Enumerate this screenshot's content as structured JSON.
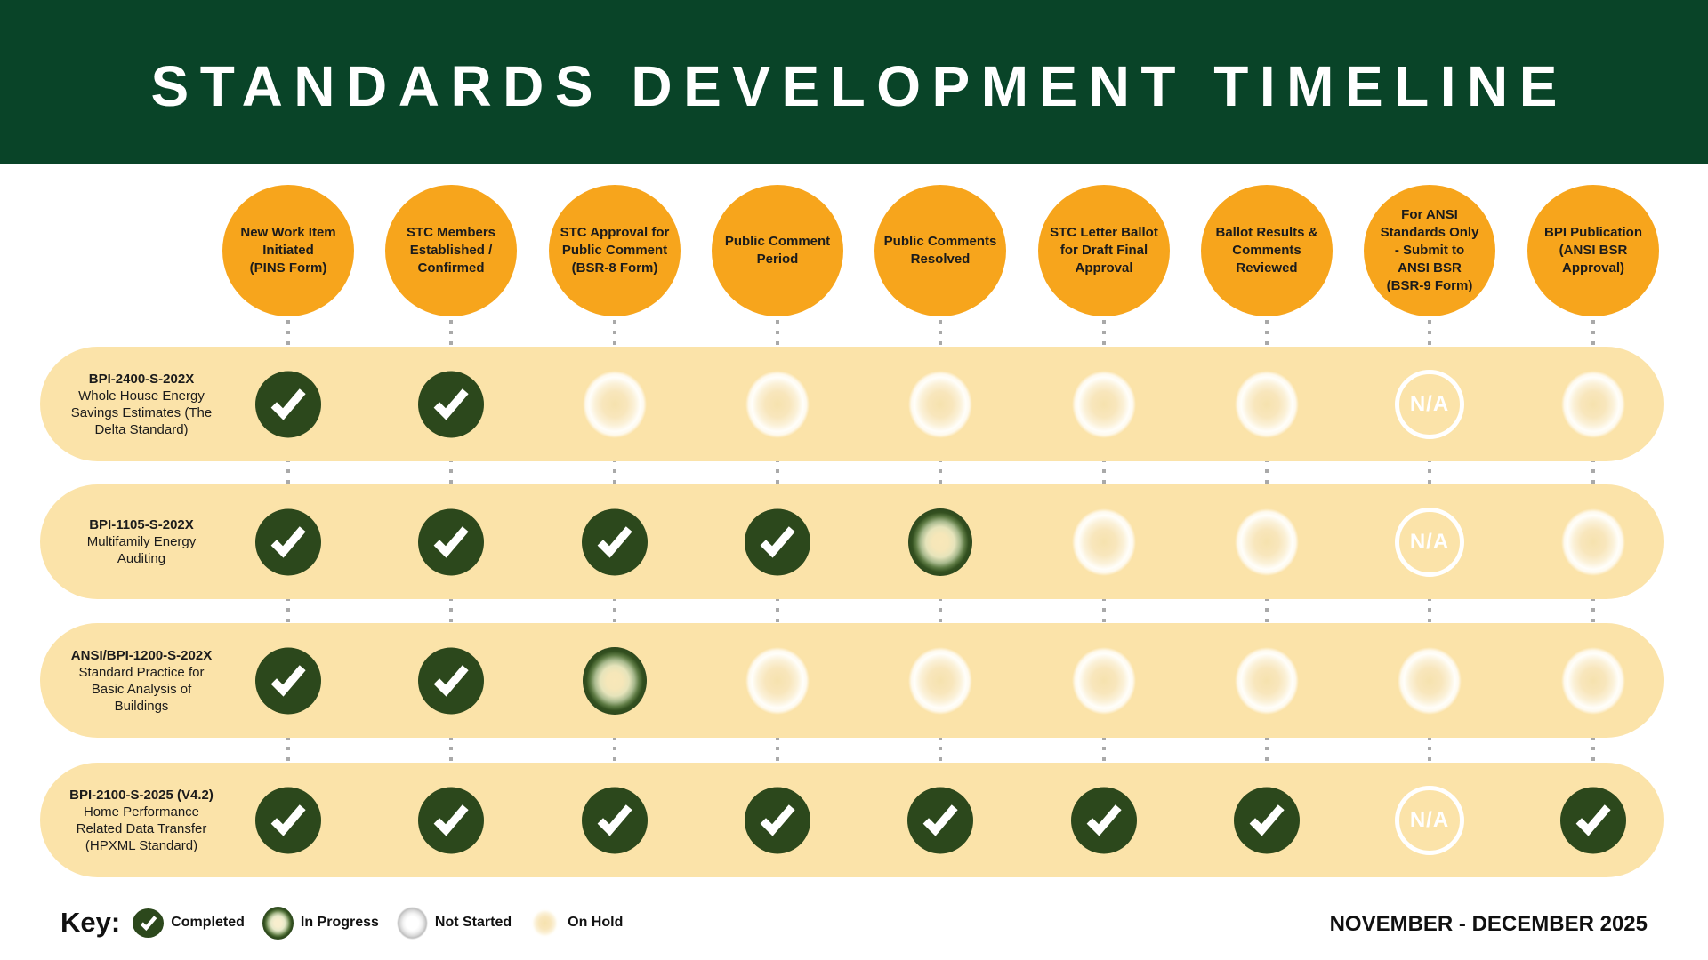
{
  "title": "STANDARDS DEVELOPMENT TIMELINE",
  "date_range": "NOVEMBER - DECEMBER 2025",
  "na_label": "N/A",
  "key": {
    "heading": "Key:",
    "items": [
      {
        "status": "completed",
        "label": "Completed"
      },
      {
        "status": "inprogress",
        "label": "In Progress"
      },
      {
        "status": "notstarted",
        "label": "Not Started"
      },
      {
        "status": "onhold",
        "label": "On Hold"
      }
    ]
  },
  "stages": [
    "New Work Item\nInitiated\n(PINS Form)",
    "STC Members\nEstablished /\nConfirmed",
    "STC Approval for\nPublic Comment\n(BSR-8 Form)",
    "Public Comment\nPeriod",
    "Public Comments\nResolved",
    "STC Letter Ballot\nfor Draft Final\nApproval",
    "Ballot Results &\nComments\nReviewed",
    "For ANSI\nStandards Only\n- Submit to\nANSI BSR\n(BSR-9 Form)",
    "BPI Publication\n(ANSI BSR\nApproval)"
  ],
  "rows": [
    {
      "code": "BPI-2400-S-202X",
      "description": "Whole House Energy\nSavings Estimates (The\nDelta Standard)",
      "statuses": [
        "completed",
        "completed",
        "onhold",
        "onhold",
        "onhold",
        "onhold",
        "onhold",
        "na",
        "onhold"
      ]
    },
    {
      "code": "BPI-1105-S-202X",
      "description": "Multifamily Energy\nAuditing",
      "statuses": [
        "completed",
        "completed",
        "completed",
        "completed",
        "inprogress",
        "onhold",
        "onhold",
        "na",
        "onhold"
      ]
    },
    {
      "code": "ANSI/BPI-1200-S-202X",
      "description": "Standard Practice for\nBasic Analysis of\nBuildings",
      "statuses": [
        "completed",
        "completed",
        "inprogress",
        "onhold",
        "onhold",
        "onhold",
        "onhold",
        "onhold",
        "onhold"
      ]
    },
    {
      "code": "BPI-2100-S-2025 (V4.2)",
      "description": "Home Performance\nRelated Data Transfer\n(HPXML Standard)",
      "statuses": [
        "completed",
        "completed",
        "completed",
        "completed",
        "completed",
        "completed",
        "completed",
        "na",
        "completed"
      ]
    }
  ],
  "colors": {
    "header_green": "#094428",
    "stage_orange": "#F7A51C",
    "band_cream": "#FBE3A9",
    "check_green": "#2C481C",
    "dotted_gray": "#A9A9A9",
    "text_dark": "#1B1B1B"
  }
}
